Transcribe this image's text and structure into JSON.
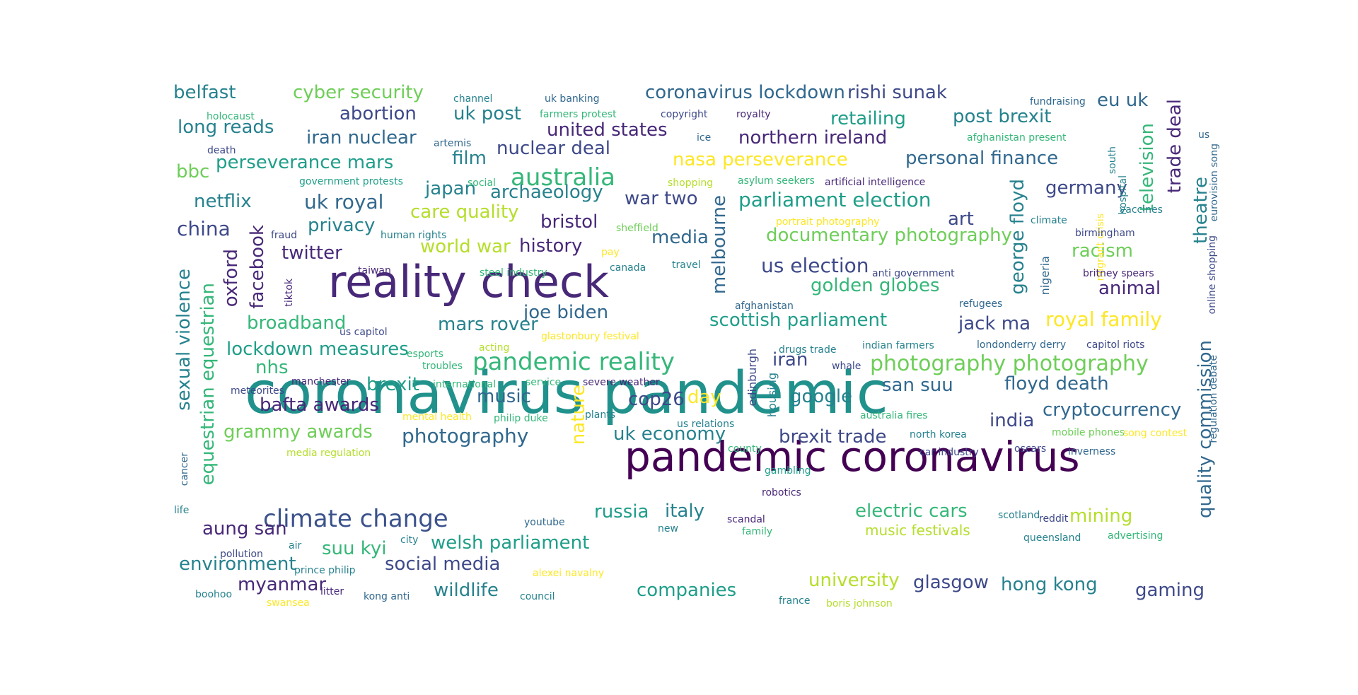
{
  "chart_data": {
    "type": "wordcloud",
    "title": "",
    "palette": [
      "#440154",
      "#482878",
      "#3e4989",
      "#31688e",
      "#26828e",
      "#1f9e89",
      "#35b779",
      "#6ece58",
      "#b5de2b",
      "#fde725"
    ],
    "words": [
      {
        "text": "coronavirus pandemic",
        "weight": 100,
        "color": "#21918c"
      },
      {
        "text": "pandemic coronavirus",
        "weight": 62,
        "color": "#440154"
      },
      {
        "text": "reality check",
        "weight": 58,
        "color": "#482878"
      },
      {
        "text": "pandemic reality",
        "weight": 32,
        "color": "#35b779"
      },
      {
        "text": "climate change",
        "weight": 32,
        "color": "#3b528b"
      },
      {
        "text": "photography photography",
        "weight": 28,
        "color": "#6ece58"
      },
      {
        "text": "australia",
        "weight": 30,
        "color": "#35b779"
      },
      {
        "text": "parliament election",
        "weight": 27,
        "color": "#1f9e89"
      },
      {
        "text": "photography",
        "weight": 26,
        "color": "#31688e"
      },
      {
        "text": "us election",
        "weight": 27,
        "color": "#3e4989"
      },
      {
        "text": "royal family",
        "weight": 26,
        "color": "#fde725"
      },
      {
        "text": "uk royal",
        "weight": 25,
        "color": "#31688e"
      },
      {
        "text": "china",
        "weight": 25,
        "color": "#3e4989"
      },
      {
        "text": "coronavirus lockdown",
        "weight": 22,
        "color": "#31688e"
      },
      {
        "text": "rishi sunak",
        "weight": 22,
        "color": "#3e4989"
      },
      {
        "text": "cyber security",
        "weight": 22,
        "color": "#6ece58"
      },
      {
        "text": "belfast",
        "weight": 22,
        "color": "#26828e"
      },
      {
        "text": "abortion",
        "weight": 22,
        "color": "#3e4989"
      },
      {
        "text": "uk post",
        "weight": 22,
        "color": "#26828e"
      },
      {
        "text": "retailing",
        "weight": 22,
        "color": "#1f9e89"
      },
      {
        "text": "post brexit",
        "weight": 22,
        "color": "#26828e"
      },
      {
        "text": "eu uk",
        "weight": 22,
        "color": "#31688e"
      },
      {
        "text": "long reads",
        "weight": 22,
        "color": "#26828e"
      },
      {
        "text": "united states",
        "weight": 22,
        "color": "#482878"
      },
      {
        "text": "iran nuclear",
        "weight": 22,
        "color": "#31688e"
      },
      {
        "text": "northern ireland",
        "weight": 22,
        "color": "#482878"
      },
      {
        "text": "nuclear deal",
        "weight": 22,
        "color": "#3e4989"
      },
      {
        "text": "personal finance",
        "weight": 22,
        "color": "#31688e"
      },
      {
        "text": "bbc",
        "weight": 22,
        "color": "#6ece58"
      },
      {
        "text": "perseverance mars",
        "weight": 22,
        "color": "#1f9e89"
      },
      {
        "text": "film",
        "weight": 22,
        "color": "#26828e"
      },
      {
        "text": "nasa perseverance",
        "weight": 22,
        "color": "#fde725"
      },
      {
        "text": "germany",
        "weight": 22,
        "color": "#3e4989"
      },
      {
        "text": "japan",
        "weight": 22,
        "color": "#26828e"
      },
      {
        "text": "archaeology",
        "weight": 22,
        "color": "#26828e"
      },
      {
        "text": "netflix",
        "weight": 22,
        "color": "#26828e"
      },
      {
        "text": "war two",
        "weight": 22,
        "color": "#3e4989"
      },
      {
        "text": "care quality",
        "weight": 22,
        "color": "#b5de2b"
      },
      {
        "text": "bristol",
        "weight": 22,
        "color": "#482878"
      },
      {
        "text": "art",
        "weight": 22,
        "color": "#3e4989"
      },
      {
        "text": "privacy",
        "weight": 22,
        "color": "#26828e"
      },
      {
        "text": "media",
        "weight": 22,
        "color": "#31688e"
      },
      {
        "text": "documentary photography",
        "weight": 22,
        "color": "#6ece58"
      },
      {
        "text": "twitter",
        "weight": 22,
        "color": "#482878"
      },
      {
        "text": "world war",
        "weight": 22,
        "color": "#b5de2b"
      },
      {
        "text": "history",
        "weight": 22,
        "color": "#482878"
      },
      {
        "text": "racism",
        "weight": 22,
        "color": "#6ece58"
      },
      {
        "text": "golden globes",
        "weight": 22,
        "color": "#35b779"
      },
      {
        "text": "animal",
        "weight": 22,
        "color": "#482878"
      },
      {
        "text": "joe biden",
        "weight": 22,
        "color": "#31688e"
      },
      {
        "text": "broadband",
        "weight": 22,
        "color": "#35b779"
      },
      {
        "text": "mars rover",
        "weight": 22,
        "color": "#26828e"
      },
      {
        "text": "scottish parliament",
        "weight": 22,
        "color": "#1f9e89"
      },
      {
        "text": "jack ma",
        "weight": 22,
        "color": "#3e4989"
      },
      {
        "text": "lockdown measures",
        "weight": 22,
        "color": "#1f9e89"
      },
      {
        "text": "nhs",
        "weight": 22,
        "color": "#35b779"
      },
      {
        "text": "iran",
        "weight": 22,
        "color": "#3e4989"
      },
      {
        "text": "brexit",
        "weight": 22,
        "color": "#1f9e89"
      },
      {
        "text": "san suu",
        "weight": 22,
        "color": "#31688e"
      },
      {
        "text": "floyd death",
        "weight": 22,
        "color": "#31688e"
      },
      {
        "text": "bafta awards",
        "weight": 22,
        "color": "#482878"
      },
      {
        "text": "music",
        "weight": 22,
        "color": "#31688e"
      },
      {
        "text": "cop26",
        "weight": 22,
        "color": "#3e4989"
      },
      {
        "text": "day",
        "weight": 22,
        "color": "#fde725"
      },
      {
        "text": "google",
        "weight": 22,
        "color": "#26828e"
      },
      {
        "text": "cryptocurrency",
        "weight": 22,
        "color": "#31688e"
      },
      {
        "text": "india",
        "weight": 22,
        "color": "#3e4989"
      },
      {
        "text": "grammy awards",
        "weight": 22,
        "color": "#6ece58"
      },
      {
        "text": "uk economy",
        "weight": 22,
        "color": "#26828e"
      },
      {
        "text": "brexit trade",
        "weight": 22,
        "color": "#3e4989"
      },
      {
        "text": "russia",
        "weight": 22,
        "color": "#1f9e89"
      },
      {
        "text": "italy",
        "weight": 22,
        "color": "#26828e"
      },
      {
        "text": "electric cars",
        "weight": 22,
        "color": "#35b779"
      },
      {
        "text": "mining",
        "weight": 22,
        "color": "#b5de2b"
      },
      {
        "text": "aung san",
        "weight": 22,
        "color": "#482878"
      },
      {
        "text": "suu kyi",
        "weight": 22,
        "color": "#35b779"
      },
      {
        "text": "welsh parliament",
        "weight": 22,
        "color": "#1f9e89"
      },
      {
        "text": "environment",
        "weight": 22,
        "color": "#26828e"
      },
      {
        "text": "social media",
        "weight": 22,
        "color": "#3e4989"
      },
      {
        "text": "university",
        "weight": 22,
        "color": "#b5de2b"
      },
      {
        "text": "myanmar",
        "weight": 22,
        "color": "#482878"
      },
      {
        "text": "wildlife",
        "weight": 22,
        "color": "#26828e"
      },
      {
        "text": "companies",
        "weight": 22,
        "color": "#1f9e89"
      },
      {
        "text": "glasgow",
        "weight": 22,
        "color": "#3e4989"
      },
      {
        "text": "hong kong",
        "weight": 22,
        "color": "#26828e"
      },
      {
        "text": "gaming",
        "weight": 22,
        "color": "#3e4989"
      },
      {
        "text": "sexual violence",
        "weight": 22,
        "color": "#26828e"
      },
      {
        "text": "equestrian equestrian",
        "weight": 22,
        "color": "#35b779"
      },
      {
        "text": "oxford",
        "weight": 22,
        "color": "#482878"
      },
      {
        "text": "facebook",
        "weight": 22,
        "color": "#482878"
      },
      {
        "text": "melbourne",
        "weight": 22,
        "color": "#31688e"
      },
      {
        "text": "nature",
        "weight": 22,
        "color": "#fde725"
      },
      {
        "text": "george floyd",
        "weight": 22,
        "color": "#26828e"
      },
      {
        "text": "trade deal",
        "weight": 22,
        "color": "#482878"
      },
      {
        "text": "television",
        "weight": 22,
        "color": "#35b779"
      },
      {
        "text": "theatre",
        "weight": 22,
        "color": "#26828e"
      },
      {
        "text": "quality commission",
        "weight": 22,
        "color": "#31688e"
      },
      {
        "text": "music festivals",
        "weight": 16,
        "color": "#b5de2b"
      },
      {
        "text": "edinburgh",
        "weight": 13,
        "color": "#3e4989"
      },
      {
        "text": "housing",
        "weight": 13,
        "color": "#26828e"
      },
      {
        "text": "nigeria",
        "weight": 13,
        "color": "#31688e"
      },
      {
        "text": "migrant crisis",
        "weight": 12,
        "color": "#fde725"
      },
      {
        "text": "online shopping",
        "weight": 12,
        "color": "#3e4989"
      },
      {
        "text": "eurovision song",
        "weight": 12,
        "color": "#31688e"
      },
      {
        "text": "regulation debate",
        "weight": 12,
        "color": "#31688e"
      },
      {
        "text": "south",
        "weight": 12,
        "color": "#26828e"
      },
      {
        "text": "hospital",
        "weight": 12,
        "color": "#26828e"
      },
      {
        "text": "tiktok",
        "weight": 12,
        "color": "#482878"
      },
      {
        "text": "cancer",
        "weight": 12,
        "color": "#31688e"
      },
      {
        "text": "channel",
        "weight": 12,
        "color": "#26828e"
      },
      {
        "text": "uk banking",
        "weight": 12,
        "color": "#31688e"
      },
      {
        "text": "fundraising",
        "weight": 12,
        "color": "#31688e"
      },
      {
        "text": "holocaust",
        "weight": 12,
        "color": "#35b779"
      },
      {
        "text": "farmers protest",
        "weight": 12,
        "color": "#35b779"
      },
      {
        "text": "copyright",
        "weight": 12,
        "color": "#3e4989"
      },
      {
        "text": "royalty",
        "weight": 12,
        "color": "#482878"
      },
      {
        "text": "artemis",
        "weight": 12,
        "color": "#31688e"
      },
      {
        "text": "ice",
        "weight": 12,
        "color": "#31688e"
      },
      {
        "text": "afghanistan present",
        "weight": 12,
        "color": "#35b779"
      },
      {
        "text": "death",
        "weight": 12,
        "color": "#3e4989"
      },
      {
        "text": "us",
        "weight": 12,
        "color": "#31688e"
      },
      {
        "text": "government protests",
        "weight": 12,
        "color": "#1f9e89"
      },
      {
        "text": "social",
        "weight": 12,
        "color": "#35b779"
      },
      {
        "text": "shopping",
        "weight": 12,
        "color": "#b5de2b"
      },
      {
        "text": "asylum seekers",
        "weight": 12,
        "color": "#35b779"
      },
      {
        "text": "artificial intelligence",
        "weight": 12,
        "color": "#482878"
      },
      {
        "text": "vaccines",
        "weight": 12,
        "color": "#26828e"
      },
      {
        "text": "climate",
        "weight": 12,
        "color": "#26828e"
      },
      {
        "text": "portrait photography",
        "weight": 12,
        "color": "#fde725"
      },
      {
        "text": "fraud",
        "weight": 12,
        "color": "#3e4989"
      },
      {
        "text": "human rights",
        "weight": 12,
        "color": "#26828e"
      },
      {
        "text": "sheffield",
        "weight": 12,
        "color": "#6ece58"
      },
      {
        "text": "birmingham",
        "weight": 12,
        "color": "#3e4989"
      },
      {
        "text": "pay",
        "weight": 12,
        "color": "#fde725"
      },
      {
        "text": "taiwan",
        "weight": 12,
        "color": "#482878"
      },
      {
        "text": "canada",
        "weight": 12,
        "color": "#26828e"
      },
      {
        "text": "travel",
        "weight": 12,
        "color": "#26828e"
      },
      {
        "text": "steel industry",
        "weight": 12,
        "color": "#35b779"
      },
      {
        "text": "anti government",
        "weight": 12,
        "color": "#3e4989"
      },
      {
        "text": "britney spears",
        "weight": 12,
        "color": "#482878"
      },
      {
        "text": "afghanistan",
        "weight": 12,
        "color": "#31688e"
      },
      {
        "text": "refugees",
        "weight": 12,
        "color": "#31688e"
      },
      {
        "text": "us capitol",
        "weight": 12,
        "color": "#3e4989"
      },
      {
        "text": "glastonbury festival",
        "weight": 12,
        "color": "#fde725"
      },
      {
        "text": "acting",
        "weight": 12,
        "color": "#b5de2b"
      },
      {
        "text": "drugs trade",
        "weight": 12,
        "color": "#26828e"
      },
      {
        "text": "indian farmers",
        "weight": 12,
        "color": "#26828e"
      },
      {
        "text": "londonderry derry",
        "weight": 12,
        "color": "#31688e"
      },
      {
        "text": "capitol riots",
        "weight": 12,
        "color": "#3e4989"
      },
      {
        "text": "esports",
        "weight": 12,
        "color": "#35b779"
      },
      {
        "text": "troubles",
        "weight": 12,
        "color": "#35b779"
      },
      {
        "text": "whale",
        "weight": 12,
        "color": "#3e4989"
      },
      {
        "text": "manchester",
        "weight": 12,
        "color": "#482878"
      },
      {
        "text": "international",
        "weight": 12,
        "color": "#35b779"
      },
      {
        "text": "service",
        "weight": 12,
        "color": "#35b779"
      },
      {
        "text": "severe weather",
        "weight": 12,
        "color": "#482878"
      },
      {
        "text": "meteorites",
        "weight": 12,
        "color": "#3e4989"
      },
      {
        "text": "mental health",
        "weight": 12,
        "color": "#fde725"
      },
      {
        "text": "philip duke",
        "weight": 12,
        "color": "#35b779"
      },
      {
        "text": "plants",
        "weight": 12,
        "color": "#26828e"
      },
      {
        "text": "australia fires",
        "weight": 12,
        "color": "#35b779"
      },
      {
        "text": "us relations",
        "weight": 12,
        "color": "#26828e"
      },
      {
        "text": "north korea",
        "weight": 12,
        "color": "#26828e"
      },
      {
        "text": "mobile phones",
        "weight": 12,
        "color": "#6ece58"
      },
      {
        "text": "song contest",
        "weight": 12,
        "color": "#fde725"
      },
      {
        "text": "media regulation",
        "weight": 12,
        "color": "#b5de2b"
      },
      {
        "text": "county",
        "weight": 12,
        "color": "#35b779"
      },
      {
        "text": "car industry",
        "weight": 12,
        "color": "#3e4989"
      },
      {
        "text": "oscars",
        "weight": 12,
        "color": "#3e4989"
      },
      {
        "text": "inverness",
        "weight": 12,
        "color": "#31688e"
      },
      {
        "text": "gambling",
        "weight": 12,
        "color": "#1f9e89"
      },
      {
        "text": "robotics",
        "weight": 12,
        "color": "#482878"
      },
      {
        "text": "life",
        "weight": 12,
        "color": "#26828e"
      },
      {
        "text": "youtube",
        "weight": 12,
        "color": "#31688e"
      },
      {
        "text": "scandal",
        "weight": 12,
        "color": "#482878"
      },
      {
        "text": "scotland",
        "weight": 12,
        "color": "#26828e"
      },
      {
        "text": "reddit",
        "weight": 12,
        "color": "#3e4989"
      },
      {
        "text": "new",
        "weight": 12,
        "color": "#26828e"
      },
      {
        "text": "family",
        "weight": 12,
        "color": "#35b779"
      },
      {
        "text": "queensland",
        "weight": 12,
        "color": "#26828e"
      },
      {
        "text": "advertising",
        "weight": 12,
        "color": "#35b779"
      },
      {
        "text": "air",
        "weight": 12,
        "color": "#26828e"
      },
      {
        "text": "city",
        "weight": 12,
        "color": "#26828e"
      },
      {
        "text": "pollution",
        "weight": 12,
        "color": "#3e4989"
      },
      {
        "text": "prince philip",
        "weight": 12,
        "color": "#26828e"
      },
      {
        "text": "alexei navalny",
        "weight": 12,
        "color": "#fde725"
      },
      {
        "text": "boohoo",
        "weight": 12,
        "color": "#26828e"
      },
      {
        "text": "litter",
        "weight": 12,
        "color": "#482878"
      },
      {
        "text": "kong anti",
        "weight": 12,
        "color": "#31688e"
      },
      {
        "text": "council",
        "weight": 12,
        "color": "#26828e"
      },
      {
        "text": "swansea",
        "weight": 12,
        "color": "#fde725"
      },
      {
        "text": "france",
        "weight": 12,
        "color": "#26828e"
      },
      {
        "text": "boris johnson",
        "weight": 12,
        "color": "#b5de2b"
      }
    ]
  }
}
